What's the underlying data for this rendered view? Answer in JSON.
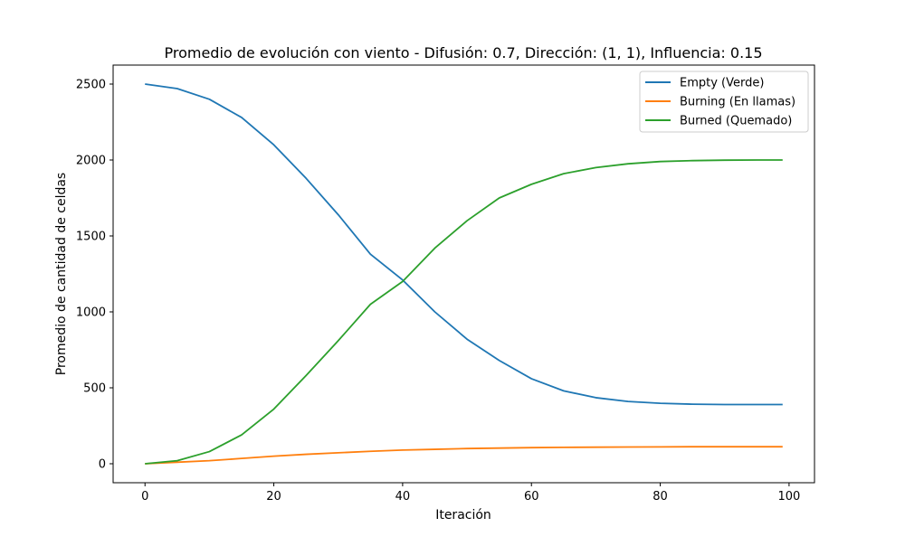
{
  "chart_data": {
    "type": "line",
    "title": "Promedio de evolución con viento - Difusión: 0.7, Dirección: (1, 1), Influencia: 0.15",
    "xlabel": "Iteración",
    "ylabel": "Promedio de cantidad de celdas",
    "xlim": [
      -4.95,
      103.95
    ],
    "ylim": [
      -125,
      2625
    ],
    "xticks": [
      0,
      20,
      40,
      60,
      80,
      100
    ],
    "yticks": [
      0,
      500,
      1000,
      1500,
      2000,
      2500
    ],
    "grid": false,
    "legend_position": "top-right",
    "series": [
      {
        "name": "Empty (Verde)",
        "color": "#1f77b4",
        "points": [
          [
            0,
            2500
          ],
          [
            5,
            2470
          ],
          [
            10,
            2400
          ],
          [
            15,
            2280
          ],
          [
            20,
            2100
          ],
          [
            25,
            1880
          ],
          [
            30,
            1640
          ],
          [
            35,
            1380
          ],
          [
            40,
            1210
          ],
          [
            45,
            1000
          ],
          [
            50,
            820
          ],
          [
            55,
            680
          ],
          [
            60,
            560
          ],
          [
            65,
            480
          ],
          [
            70,
            435
          ],
          [
            75,
            410
          ],
          [
            80,
            398
          ],
          [
            85,
            392
          ],
          [
            90,
            390
          ],
          [
            95,
            390
          ],
          [
            99,
            390
          ]
        ]
      },
      {
        "name": "Burning (En llamas)",
        "color": "#ff7f0e",
        "points": [
          [
            0,
            0
          ],
          [
            5,
            10
          ],
          [
            10,
            20
          ],
          [
            15,
            35
          ],
          [
            20,
            50
          ],
          [
            25,
            62
          ],
          [
            30,
            72
          ],
          [
            35,
            82
          ],
          [
            40,
            90
          ],
          [
            45,
            95
          ],
          [
            50,
            100
          ],
          [
            55,
            103
          ],
          [
            60,
            106
          ],
          [
            65,
            108
          ],
          [
            70,
            109
          ],
          [
            75,
            110
          ],
          [
            80,
            111
          ],
          [
            85,
            112
          ],
          [
            90,
            112
          ],
          [
            95,
            112
          ],
          [
            99,
            112
          ]
        ]
      },
      {
        "name": "Burned (Quemado)",
        "color": "#2ca02c",
        "points": [
          [
            0,
            0
          ],
          [
            5,
            20
          ],
          [
            10,
            80
          ],
          [
            15,
            190
          ],
          [
            20,
            360
          ],
          [
            25,
            580
          ],
          [
            30,
            810
          ],
          [
            35,
            1050
          ],
          [
            40,
            1200
          ],
          [
            45,
            1420
          ],
          [
            50,
            1600
          ],
          [
            55,
            1750
          ],
          [
            60,
            1840
          ],
          [
            65,
            1910
          ],
          [
            70,
            1950
          ],
          [
            75,
            1975
          ],
          [
            80,
            1990
          ],
          [
            85,
            1996
          ],
          [
            90,
            1999
          ],
          [
            95,
            2000
          ],
          [
            99,
            2000
          ]
        ]
      }
    ]
  }
}
